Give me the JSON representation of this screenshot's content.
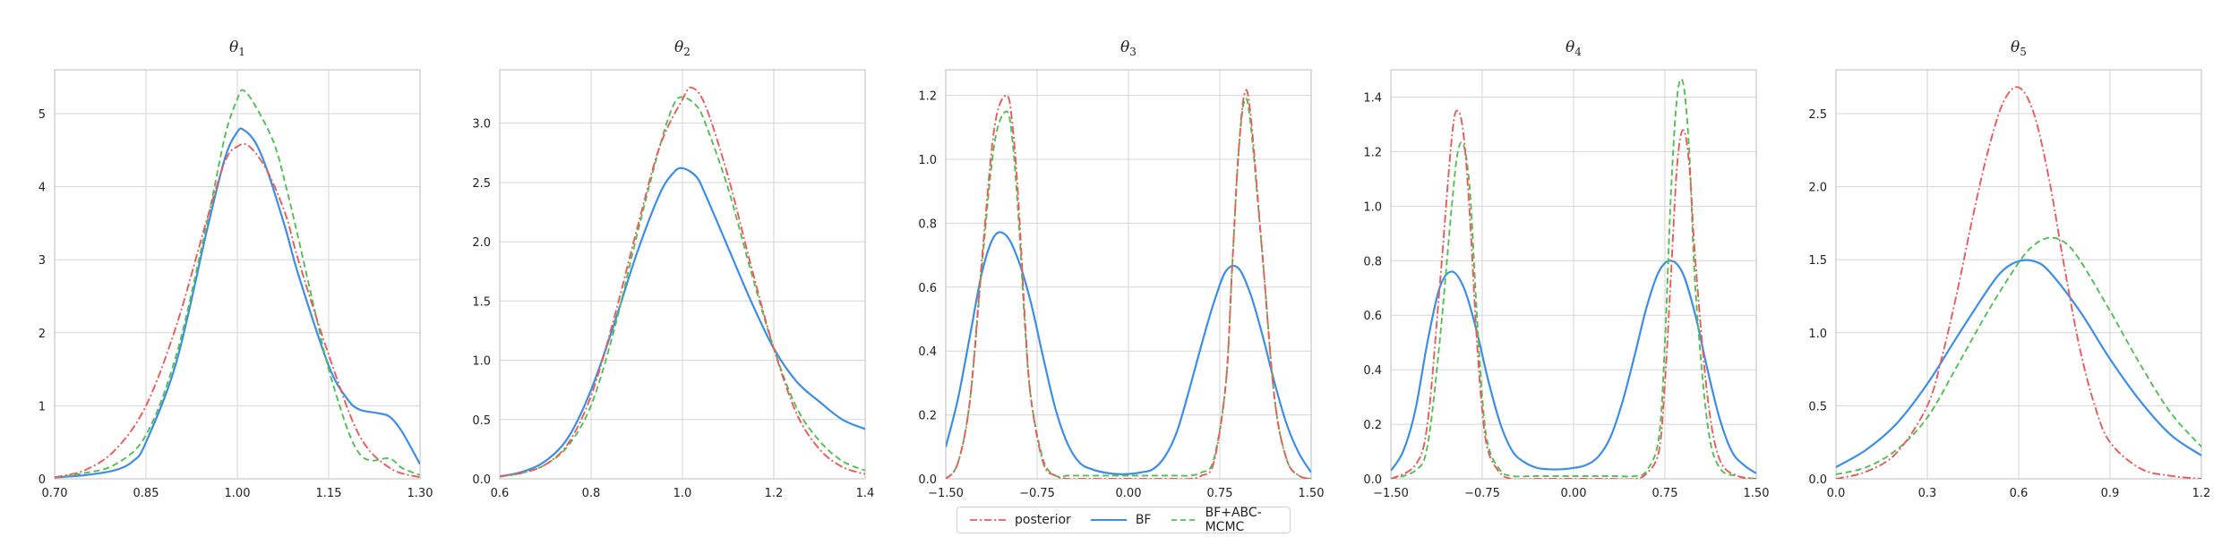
{
  "colors": {
    "posterior": "#ec5a5a",
    "bf": "#3c8ee6",
    "bf_abc": "#52c052",
    "grid": "#d5d5d5",
    "axis": "#c8c8c8",
    "text": "#222222"
  },
  "legend": {
    "placement": "bottom-center",
    "items": [
      {
        "label": "posterior",
        "style": "dashdot",
        "color": "#ec5a5a"
      },
      {
        "label": "BF",
        "style": "solid",
        "color": "#3c8ee6"
      },
      {
        "label": "BF+ABC-MCMC",
        "style": "dashed",
        "color": "#52c052"
      }
    ]
  },
  "chart_data": [
    {
      "type": "line",
      "title": "θ",
      "subscript": "1",
      "xlim": [
        0.7,
        1.3
      ],
      "ylim": [
        0,
        5.6
      ],
      "xticks": [
        0.7,
        0.85,
        1.0,
        1.15,
        1.3
      ],
      "xtick_labels": [
        "0.70",
        "0.85",
        "1.00",
        "1.15",
        "1.30"
      ],
      "yticks": [
        0,
        1,
        2,
        3,
        4,
        5
      ],
      "ytick_labels": [
        "0",
        "1",
        "2",
        "3",
        "4",
        "5"
      ],
      "grid": true,
      "series": [
        {
          "key": "posterior",
          "style": "dashdot",
          "color": "#ec5a5a",
          "x": [
            0.7,
            0.75,
            0.8,
            0.85,
            0.9,
            0.95,
            0.98,
            1.0,
            1.02,
            1.05,
            1.08,
            1.1,
            1.15,
            1.2,
            1.25,
            1.3
          ],
          "y": [
            0.02,
            0.12,
            0.4,
            1.0,
            2.1,
            3.55,
            4.35,
            4.55,
            4.55,
            4.2,
            3.6,
            3.0,
            1.7,
            0.6,
            0.15,
            0.02
          ]
        },
        {
          "key": "bf",
          "style": "solid",
          "color": "#3c8ee6",
          "x": [
            0.7,
            0.75,
            0.8,
            0.83,
            0.85,
            0.9,
            0.95,
            0.98,
            1.0,
            1.01,
            1.03,
            1.05,
            1.08,
            1.1,
            1.15,
            1.18,
            1.2,
            1.23,
            1.25,
            1.27,
            1.3
          ],
          "y": [
            0.02,
            0.05,
            0.12,
            0.25,
            0.5,
            1.6,
            3.4,
            4.4,
            4.75,
            4.78,
            4.6,
            4.2,
            3.4,
            2.8,
            1.55,
            1.1,
            0.95,
            0.9,
            0.85,
            0.65,
            0.2
          ]
        },
        {
          "key": "bf_abc",
          "style": "dashed",
          "color": "#52c052",
          "x": [
            0.7,
            0.75,
            0.8,
            0.85,
            0.9,
            0.95,
            0.98,
            1.0,
            1.01,
            1.03,
            1.06,
            1.08,
            1.1,
            1.13,
            1.15,
            1.18,
            1.2,
            1.22,
            1.25,
            1.27,
            1.3
          ],
          "y": [
            0.02,
            0.08,
            0.2,
            0.6,
            1.7,
            3.5,
            4.7,
            5.2,
            5.32,
            5.1,
            4.6,
            4.0,
            3.3,
            2.2,
            1.5,
            0.7,
            0.35,
            0.25,
            0.28,
            0.15,
            0.05
          ]
        }
      ]
    },
    {
      "type": "line",
      "title": "θ",
      "subscript": "2",
      "xlim": [
        0.6,
        1.4
      ],
      "ylim": [
        0,
        3.45
      ],
      "xticks": [
        0.6,
        0.8,
        1.0,
        1.2,
        1.4
      ],
      "xtick_labels": [
        "0.6",
        "0.8",
        "1.0",
        "1.2",
        "1.4"
      ],
      "yticks": [
        0,
        0.5,
        1.0,
        1.5,
        2.0,
        2.5,
        3.0
      ],
      "ytick_labels": [
        "0.0",
        "0.5",
        "1.0",
        "1.5",
        "2.0",
        "2.5",
        "3.0"
      ],
      "grid": true,
      "series": [
        {
          "key": "posterior",
          "style": "dashdot",
          "color": "#ec5a5a",
          "x": [
            0.6,
            0.65,
            0.7,
            0.75,
            0.8,
            0.85,
            0.9,
            0.95,
            1.0,
            1.02,
            1.05,
            1.1,
            1.15,
            1.2,
            1.25,
            1.3,
            1.35,
            1.4
          ],
          "y": [
            0.02,
            0.05,
            0.12,
            0.3,
            0.7,
            1.35,
            2.1,
            2.8,
            3.2,
            3.3,
            3.15,
            2.55,
            1.8,
            1.1,
            0.55,
            0.25,
            0.1,
            0.04
          ]
        },
        {
          "key": "bf",
          "style": "solid",
          "color": "#3c8ee6",
          "x": [
            0.6,
            0.65,
            0.7,
            0.75,
            0.8,
            0.85,
            0.9,
            0.95,
            0.98,
            1.0,
            1.03,
            1.05,
            1.1,
            1.15,
            1.2,
            1.25,
            1.3,
            1.35,
            1.4
          ],
          "y": [
            0.02,
            0.06,
            0.15,
            0.35,
            0.75,
            1.3,
            1.9,
            2.4,
            2.58,
            2.62,
            2.55,
            2.4,
            1.95,
            1.5,
            1.1,
            0.82,
            0.65,
            0.5,
            0.42
          ]
        },
        {
          "key": "bf_abc",
          "style": "dashed",
          "color": "#52c052",
          "x": [
            0.6,
            0.65,
            0.7,
            0.75,
            0.8,
            0.85,
            0.9,
            0.95,
            0.98,
            1.0,
            1.03,
            1.05,
            1.1,
            1.15,
            1.2,
            1.25,
            1.3,
            1.35,
            1.4
          ],
          "y": [
            0.02,
            0.05,
            0.12,
            0.28,
            0.62,
            1.25,
            2.05,
            2.8,
            3.15,
            3.22,
            3.15,
            3.0,
            2.45,
            1.75,
            1.1,
            0.6,
            0.32,
            0.15,
            0.07
          ]
        }
      ]
    },
    {
      "type": "line",
      "title": "θ",
      "subscript": "3",
      "xlim": [
        -1.5,
        1.5
      ],
      "ylim": [
        0,
        1.28
      ],
      "xticks": [
        -1.5,
        -0.75,
        0.0,
        0.75,
        1.5
      ],
      "xtick_labels": [
        "−1.50",
        "−0.75",
        "0.00",
        "0.75",
        "1.50"
      ],
      "yticks": [
        0,
        0.2,
        0.4,
        0.6,
        0.8,
        1.0,
        1.2
      ],
      "ytick_labels": [
        "0.0",
        "0.2",
        "0.4",
        "0.6",
        "0.8",
        "1.0",
        "1.2"
      ],
      "grid": true,
      "series": [
        {
          "key": "posterior",
          "style": "dashdot",
          "color": "#ec5a5a",
          "x": [
            -1.5,
            -1.4,
            -1.3,
            -1.2,
            -1.1,
            -1.0,
            -0.95,
            -0.9,
            -0.85,
            -0.8,
            -0.7,
            -0.6,
            -0.5,
            -0.4,
            -0.2,
            0.0,
            0.2,
            0.4,
            0.5,
            0.6,
            0.7,
            0.8,
            0.85,
            0.9,
            0.95,
            1.0,
            1.1,
            1.2,
            1.3,
            1.4,
            1.5
          ],
          "y": [
            0.0,
            0.05,
            0.25,
            0.7,
            1.1,
            1.2,
            1.1,
            0.85,
            0.5,
            0.25,
            0.05,
            0.01,
            0.0,
            0.0,
            0.0,
            0.0,
            0.0,
            0.0,
            0.0,
            0.01,
            0.05,
            0.3,
            0.65,
            1.0,
            1.2,
            1.15,
            0.7,
            0.25,
            0.06,
            0.01,
            0.0
          ]
        },
        {
          "key": "bf",
          "style": "solid",
          "color": "#3c8ee6",
          "x": [
            -1.5,
            -1.4,
            -1.3,
            -1.2,
            -1.1,
            -1.0,
            -0.9,
            -0.8,
            -0.7,
            -0.6,
            -0.5,
            -0.4,
            -0.3,
            -0.2,
            -0.1,
            0.0,
            0.1,
            0.2,
            0.3,
            0.4,
            0.5,
            0.6,
            0.7,
            0.8,
            0.9,
            1.0,
            1.1,
            1.2,
            1.3,
            1.4,
            1.5
          ],
          "y": [
            0.1,
            0.25,
            0.45,
            0.65,
            0.76,
            0.76,
            0.68,
            0.55,
            0.38,
            0.22,
            0.11,
            0.05,
            0.03,
            0.02,
            0.015,
            0.015,
            0.02,
            0.03,
            0.07,
            0.15,
            0.28,
            0.42,
            0.55,
            0.65,
            0.66,
            0.58,
            0.45,
            0.3,
            0.17,
            0.08,
            0.02
          ]
        },
        {
          "key": "bf_abc",
          "style": "dashed",
          "color": "#52c052",
          "x": [
            -1.5,
            -1.4,
            -1.3,
            -1.2,
            -1.1,
            -1.0,
            -0.95,
            -0.9,
            -0.85,
            -0.8,
            -0.7,
            -0.6,
            -0.5,
            -0.4,
            -0.2,
            0.0,
            0.2,
            0.4,
            0.5,
            0.6,
            0.7,
            0.8,
            0.85,
            0.9,
            0.95,
            1.0,
            1.1,
            1.2,
            1.3,
            1.4,
            1.5
          ],
          "y": [
            0.0,
            0.05,
            0.25,
            0.68,
            1.05,
            1.15,
            1.05,
            0.8,
            0.48,
            0.25,
            0.06,
            0.01,
            0.01,
            0.01,
            0.01,
            0.01,
            0.01,
            0.01,
            0.01,
            0.02,
            0.06,
            0.3,
            0.65,
            1.0,
            1.18,
            1.12,
            0.7,
            0.25,
            0.06,
            0.01,
            0.0
          ]
        }
      ]
    },
    {
      "type": "line",
      "title": "θ",
      "subscript": "4",
      "xlim": [
        -1.5,
        1.5
      ],
      "ylim": [
        0,
        1.5
      ],
      "xticks": [
        -1.5,
        -0.75,
        0.0,
        0.75,
        1.5
      ],
      "xtick_labels": [
        "−1.50",
        "−0.75",
        "0.00",
        "0.75",
        "1.50"
      ],
      "yticks": [
        0,
        0.2,
        0.4,
        0.6,
        0.8,
        1.0,
        1.2,
        1.4
      ],
      "ytick_labels": [
        "0.0",
        "0.2",
        "0.4",
        "0.6",
        "0.8",
        "1.0",
        "1.2",
        "1.4"
      ],
      "grid": true,
      "series": [
        {
          "key": "posterior",
          "style": "dashdot",
          "color": "#ec5a5a",
          "x": [
            -1.5,
            -1.3,
            -1.2,
            -1.1,
            -1.0,
            -0.95,
            -0.9,
            -0.85,
            -0.8,
            -0.75,
            -0.7,
            -0.6,
            -0.5,
            -0.3,
            0.0,
            0.3,
            0.5,
            0.6,
            0.7,
            0.75,
            0.8,
            0.85,
            0.9,
            0.95,
            1.0,
            1.1,
            1.2,
            1.35,
            1.5
          ],
          "y": [
            0.0,
            0.05,
            0.2,
            0.7,
            1.25,
            1.35,
            1.25,
            0.95,
            0.55,
            0.25,
            0.1,
            0.02,
            0.0,
            0.0,
            0.0,
            0.0,
            0.0,
            0.02,
            0.1,
            0.35,
            0.75,
            1.15,
            1.28,
            1.15,
            0.8,
            0.3,
            0.07,
            0.01,
            0.0
          ]
        },
        {
          "key": "bf",
          "style": "solid",
          "color": "#3c8ee6",
          "x": [
            -1.5,
            -1.4,
            -1.3,
            -1.2,
            -1.1,
            -1.0,
            -0.9,
            -0.8,
            -0.7,
            -0.6,
            -0.5,
            -0.4,
            -0.3,
            -0.2,
            -0.1,
            0.0,
            0.1,
            0.2,
            0.3,
            0.4,
            0.5,
            0.6,
            0.7,
            0.8,
            0.9,
            1.0,
            1.1,
            1.2,
            1.3,
            1.4,
            1.5
          ],
          "y": [
            0.03,
            0.1,
            0.25,
            0.5,
            0.7,
            0.76,
            0.7,
            0.55,
            0.36,
            0.2,
            0.1,
            0.06,
            0.04,
            0.035,
            0.035,
            0.04,
            0.05,
            0.08,
            0.15,
            0.28,
            0.45,
            0.63,
            0.76,
            0.8,
            0.75,
            0.6,
            0.4,
            0.22,
            0.1,
            0.05,
            0.02
          ]
        },
        {
          "key": "bf_abc",
          "style": "dashed",
          "color": "#52c052",
          "x": [
            -1.5,
            -1.3,
            -1.2,
            -1.1,
            -1.0,
            -0.95,
            -0.9,
            -0.85,
            -0.8,
            -0.75,
            -0.7,
            -0.6,
            -0.5,
            -0.3,
            0.0,
            0.3,
            0.5,
            0.6,
            0.7,
            0.75,
            0.8,
            0.85,
            0.9,
            0.95,
            1.0,
            1.1,
            1.2,
            1.35,
            1.5
          ],
          "y": [
            0.0,
            0.03,
            0.12,
            0.5,
            1.0,
            1.2,
            1.22,
            1.05,
            0.65,
            0.3,
            0.12,
            0.03,
            0.01,
            0.01,
            0.01,
            0.01,
            0.01,
            0.03,
            0.15,
            0.5,
            1.05,
            1.4,
            1.45,
            1.2,
            0.7,
            0.2,
            0.04,
            0.01,
            0.0
          ]
        }
      ]
    },
    {
      "type": "line",
      "title": "θ",
      "subscript": "5",
      "xlim": [
        0.0,
        1.2
      ],
      "ylim": [
        0,
        2.8
      ],
      "xticks": [
        0.0,
        0.3,
        0.6,
        0.9,
        1.2
      ],
      "xtick_labels": [
        "0.0",
        "0.3",
        "0.6",
        "0.9",
        "1.2"
      ],
      "yticks": [
        0,
        0.5,
        1.0,
        1.5,
        2.0,
        2.5
      ],
      "ytick_labels": [
        "0.0",
        "0.5",
        "1.0",
        "1.5",
        "2.0",
        "2.5"
      ],
      "grid": true,
      "series": [
        {
          "key": "posterior",
          "style": "dashdot",
          "color": "#ec5a5a",
          "x": [
            0.0,
            0.1,
            0.2,
            0.3,
            0.35,
            0.4,
            0.45,
            0.5,
            0.55,
            0.6,
            0.65,
            0.7,
            0.75,
            0.8,
            0.85,
            0.9,
            1.0,
            1.1,
            1.2
          ],
          "y": [
            0.0,
            0.05,
            0.18,
            0.5,
            0.85,
            1.3,
            1.8,
            2.25,
            2.58,
            2.68,
            2.5,
            2.05,
            1.45,
            0.9,
            0.5,
            0.25,
            0.07,
            0.02,
            0.0
          ]
        },
        {
          "key": "bf",
          "style": "solid",
          "color": "#3c8ee6",
          "x": [
            0.0,
            0.1,
            0.2,
            0.3,
            0.4,
            0.5,
            0.55,
            0.6,
            0.65,
            0.7,
            0.8,
            0.9,
            1.0,
            1.1,
            1.2
          ],
          "y": [
            0.08,
            0.2,
            0.38,
            0.65,
            0.98,
            1.3,
            1.43,
            1.49,
            1.49,
            1.42,
            1.15,
            0.82,
            0.53,
            0.3,
            0.16
          ]
        },
        {
          "key": "bf_abc",
          "style": "dashed",
          "color": "#52c052",
          "x": [
            0.0,
            0.1,
            0.2,
            0.3,
            0.4,
            0.5,
            0.6,
            0.65,
            0.7,
            0.75,
            0.8,
            0.9,
            1.0,
            1.1,
            1.2
          ],
          "y": [
            0.03,
            0.08,
            0.2,
            0.42,
            0.78,
            1.15,
            1.48,
            1.6,
            1.65,
            1.62,
            1.5,
            1.15,
            0.78,
            0.45,
            0.22
          ]
        }
      ]
    }
  ]
}
